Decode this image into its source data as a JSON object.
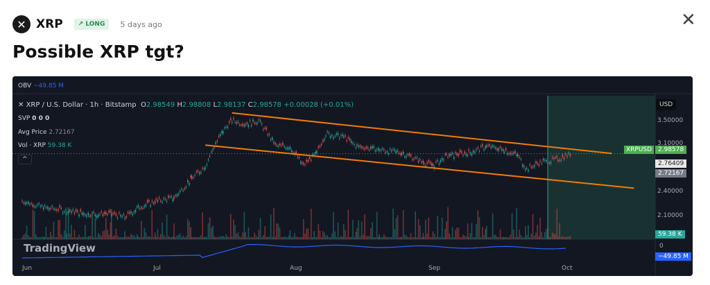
{
  "header": {
    "symbol": "XRP",
    "badge": "↗ LONG",
    "time_ago": "5 days ago",
    "title": "Possible XRP tgt?",
    "close_icon": "close-icon"
  },
  "chart": {
    "obv_label": "OBV",
    "obv_value": "−49.85 M",
    "symbol_line": "XRP / U.S. Dollar · 1h · Bitstamp",
    "ohlc": {
      "o": "2.98549",
      "h": "2.98808",
      "l": "2.98137",
      "c": "2.98578",
      "chg": "+0.00028 (+0.01%)"
    },
    "svp": "SVP",
    "svp_vals": "0 0 0",
    "avg_label": "Avg Price",
    "avg_value": "2.72167",
    "vol_label": "Vol · XRP",
    "vol_value": "59.38 K",
    "currency": "USD",
    "price_ticks": [
      "3.50000",
      "3.10000",
      "2.40000",
      "2.10000"
    ],
    "last_label": "XRPUSD",
    "last_price": "2.98578",
    "line_price": "2.76409",
    "avg_tag": "2.72167",
    "vol_tag": "59.38 K",
    "obv_zero": "0",
    "obv_tag": "−49.85 M",
    "time_ticks": [
      "Jun",
      "Jul",
      "Aug",
      "Sep",
      "Oct"
    ],
    "watermark": "TradingView",
    "colors": {
      "up": "#26a69a",
      "down": "#ef5350",
      "channel": "#f57c00",
      "obv": "#2962ff",
      "last": "#4caf50",
      "zone": "#1b3a36"
    },
    "price_path": [
      [
        0,
        2.25
      ],
      [
        5,
        2.15
      ],
      [
        10,
        2.1
      ],
      [
        15,
        2.05
      ],
      [
        20,
        2.05
      ],
      [
        23,
        2.0
      ],
      [
        26,
        2.15
      ],
      [
        30,
        2.25
      ],
      [
        34,
        2.3
      ],
      [
        38,
        2.6
      ],
      [
        41,
        2.8
      ],
      [
        43,
        3.1
      ],
      [
        45,
        3.35
      ],
      [
        47,
        3.5
      ],
      [
        50,
        3.45
      ],
      [
        53,
        3.5
      ],
      [
        55,
        3.3
      ],
      [
        57,
        3.1
      ],
      [
        60,
        3.1
      ],
      [
        63,
        2.8
      ],
      [
        66,
        3.0
      ],
      [
        68,
        3.3
      ],
      [
        72,
        3.25
      ],
      [
        75,
        3.1
      ],
      [
        80,
        3.05
      ],
      [
        85,
        3.0
      ],
      [
        90,
        2.85
      ],
      [
        92,
        2.8
      ],
      [
        95,
        2.95
      ],
      [
        100,
        3.0
      ],
      [
        104,
        3.1
      ],
      [
        108,
        3.05
      ],
      [
        111,
        2.95
      ],
      [
        113,
        2.75
      ],
      [
        116,
        2.85
      ],
      [
        120,
        2.9
      ],
      [
        123,
        2.99
      ]
    ],
    "channel_upper": [
      [
        47,
        3.62
      ],
      [
        132,
        2.99
      ]
    ],
    "channel_lower": [
      [
        41,
        3.12
      ],
      [
        137,
        2.45
      ]
    ]
  }
}
